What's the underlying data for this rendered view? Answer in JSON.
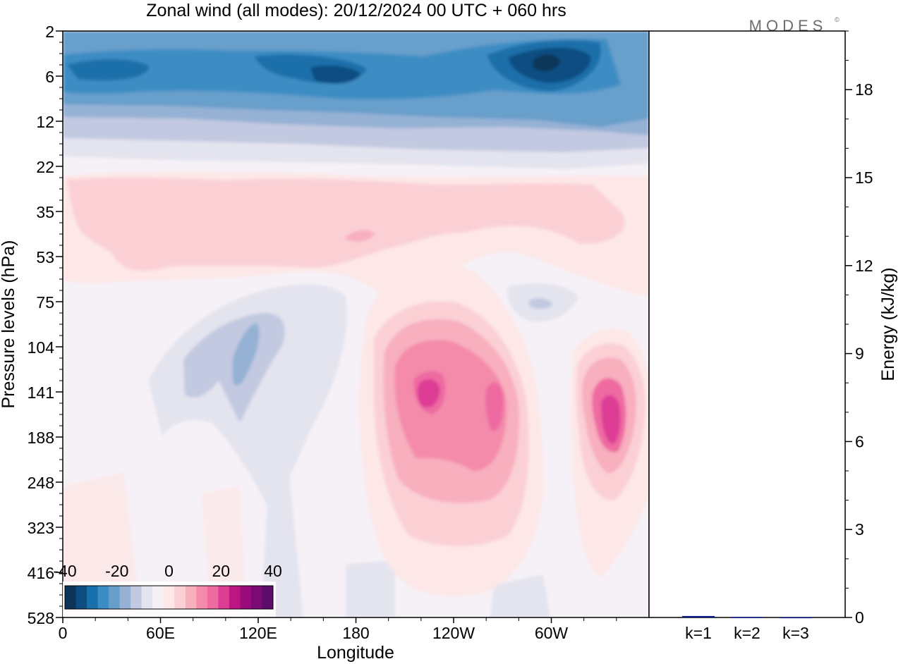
{
  "title": "Zonal wind (all modes):  20/12/2024  00 UTC  + 060 hrs",
  "logo": "MODES",
  "chart_data": [
    {
      "type": "heatmap",
      "xlabel": "Longitude",
      "ylabel": "Pressure levels (hPa)",
      "x_ticks": [
        "0",
        "60E",
        "120E",
        "180",
        "120W",
        "60W"
      ],
      "y_ticks": [
        "2",
        "6",
        "12",
        "22",
        "35",
        "53",
        "75",
        "104",
        "141",
        "188",
        "248",
        "323",
        "416",
        "528"
      ],
      "colorbar": {
        "ticks": [
          "-40",
          "-20",
          "0",
          "20",
          "40"
        ],
        "range": [
          -40,
          40
        ],
        "colors": [
          "#0b3457",
          "#0e4d82",
          "#1a70aa",
          "#3c8dc4",
          "#679fcb",
          "#95b1d4",
          "#c2c9e0",
          "#e4e4ef",
          "#f6f1f6",
          "#fde7e7",
          "#fbd0d5",
          "#f8afbe",
          "#f48bab",
          "#ee6aa1",
          "#dd3d95",
          "#bc1682",
          "#9a0c79",
          "#7c0a74",
          "#5b0c6c"
        ]
      },
      "features": [
        {
          "name": "upper easterly band",
          "pressure_hpa": [
            2,
            16
          ],
          "value_range": [
            -40,
            -15
          ]
        },
        {
          "name": "easterly maximum near 70W",
          "pressure_hpa": [
            3,
            8
          ],
          "value": -40
        },
        {
          "name": "weak westerly band",
          "pressure_hpa": [
            22,
            60
          ],
          "value_range": [
            3,
            10
          ]
        },
        {
          "name": "westerly jet core near 120W",
          "pressure_hpa": [
            100,
            250
          ],
          "value": 30
        },
        {
          "name": "westerly jet core near 30W",
          "pressure_hpa": [
            110,
            230
          ],
          "value": 25
        },
        {
          "name": "weak easterlies 60E-130E",
          "pressure_hpa": [
            80,
            300
          ],
          "value_range": [
            -10,
            -3
          ]
        }
      ]
    },
    {
      "type": "bar",
      "ylabel": "Energy (kJ/kg)",
      "categories": [
        "k=1",
        "k=2",
        "k=3"
      ],
      "values": [
        0.05,
        0.02,
        0.01
      ],
      "ylim": [
        0,
        20
      ],
      "y_ticks": [
        "0",
        "3",
        "6",
        "9",
        "12",
        "15",
        "18"
      ],
      "bar_color": "#0a1a8c"
    }
  ]
}
